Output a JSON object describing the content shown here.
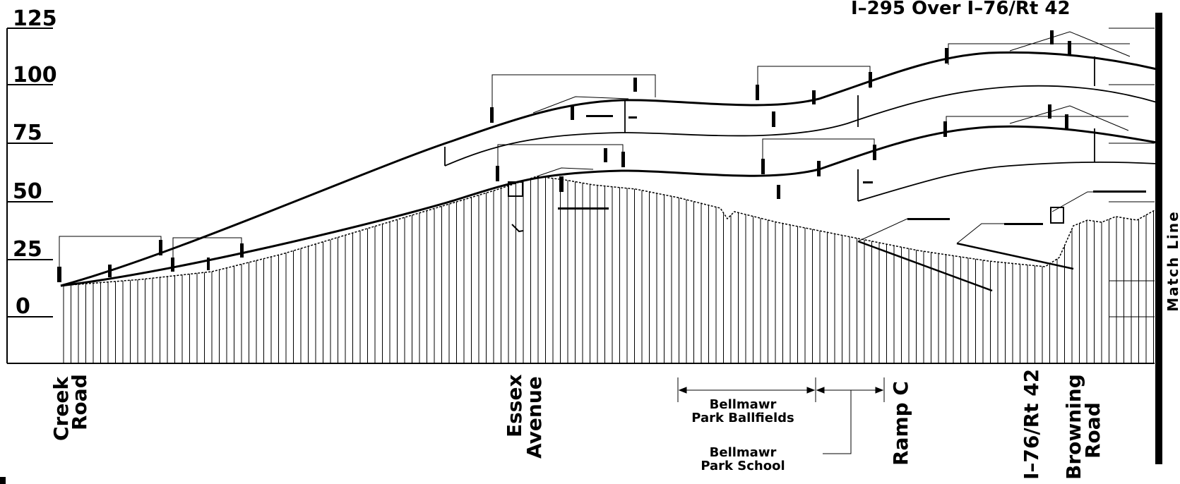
{
  "title": "I–295  Over I–76/Rt 42",
  "y_axis": {
    "labels": [
      "125",
      "100",
      "75",
      "50",
      "25",
      "0"
    ]
  },
  "match_line": "Match  Line",
  "locations": {
    "creek_road": [
      "Creek",
      "Road"
    ],
    "essex_avenue": [
      "Essex",
      "Avenue"
    ],
    "ramp_c": "Ramp  C",
    "i76_rt42": "I–76/Rt 42",
    "browning_road": [
      "Browning",
      "Road"
    ]
  },
  "annotations": {
    "ballfields": [
      "Bellmawr",
      "Park  Ballfields"
    ],
    "school": [
      "Bellmawr",
      "Park  School"
    ]
  },
  "colors": {
    "line": "#000000",
    "background": "#ffffff"
  }
}
